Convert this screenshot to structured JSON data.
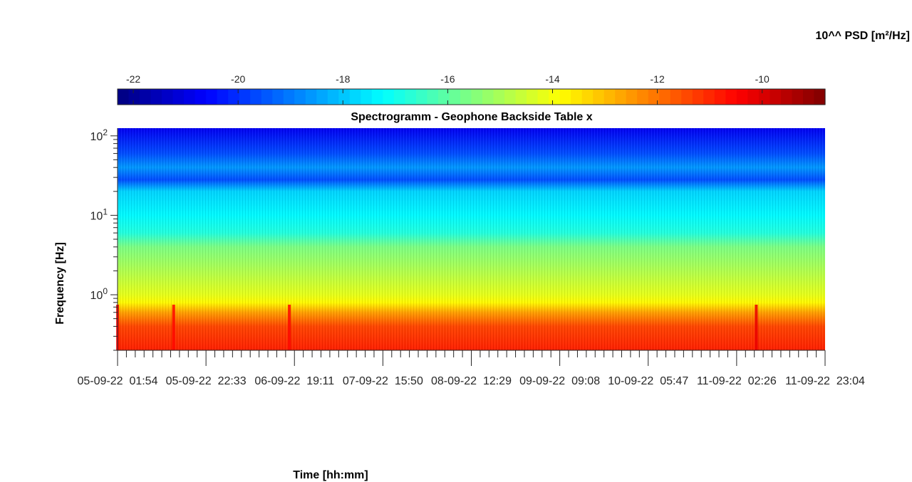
{
  "chart_data": {
    "type": "heatmap",
    "title": "Spectrogramm - Geophone Backside Table x",
    "xlabel": "Time [hh:mm]",
    "ylabel": "Frequency [Hz]",
    "colorbar_label": "10^^ PSD [m²/Hz]",
    "colormap": "jet",
    "colorbar_range": [
      -22.3,
      -8.8
    ],
    "colorbar_ticks": [
      "-22",
      "-20",
      "-18",
      "-16",
      "-14",
      "-12",
      "-10"
    ],
    "colorbar_tick_values": [
      -22,
      -20,
      -18,
      -16,
      -14,
      -12,
      -10
    ],
    "y_scale": "log",
    "y_range_hz": [
      0.2,
      125
    ],
    "y_ticks": [
      {
        "value": 1,
        "base": "10",
        "exp": "0"
      },
      {
        "value": 10,
        "base": "10",
        "exp": "1"
      },
      {
        "value": 100,
        "base": "10",
        "exp": "2"
      }
    ],
    "x_range": [
      "05-09-22 01:54",
      "11-09-22 23:04"
    ],
    "x_tick_labels": [
      "05-09-22  01:54",
      "05-09-22  22:33",
      "06-09-22  19:11",
      "07-09-22  15:50",
      "08-09-22  12:29",
      "09-09-22  09:08",
      "10-09-22  05:47",
      "11-09-22  02:26",
      "11-09-22  23:04"
    ],
    "psd_profile": [
      {
        "freq_hz": 0.2,
        "log_psd": -10.9
      },
      {
        "freq_hz": 0.4,
        "log_psd": -11.4
      },
      {
        "freq_hz": 0.6,
        "log_psd": -12.6
      },
      {
        "freq_hz": 0.8,
        "log_psd": -13.8
      },
      {
        "freq_hz": 1.0,
        "log_psd": -14.2
      },
      {
        "freq_hz": 2.0,
        "log_psd": -14.9
      },
      {
        "freq_hz": 4.0,
        "log_psd": -15.6
      },
      {
        "freq_hz": 6.0,
        "log_psd": -16.8
      },
      {
        "freq_hz": 10.0,
        "log_psd": -17.3
      },
      {
        "freq_hz": 20.0,
        "log_psd": -17.8
      },
      {
        "freq_hz": 28.0,
        "log_psd": -19.6
      },
      {
        "freq_hz": 40.0,
        "log_psd": -18.6
      },
      {
        "freq_hz": 60.0,
        "log_psd": -19.6
      },
      {
        "freq_hz": 125.0,
        "log_psd": -20.8
      }
    ],
    "events": [
      {
        "time": "05-09-22 01:54",
        "log_psd": -10.5
      },
      {
        "time": "05-09-22 15:00",
        "log_psd": -10.6
      },
      {
        "time": "06-09-22 18:00",
        "log_psd": -10.6
      },
      {
        "time": "11-09-22 07:00",
        "log_psd": -10.2
      }
    ]
  }
}
